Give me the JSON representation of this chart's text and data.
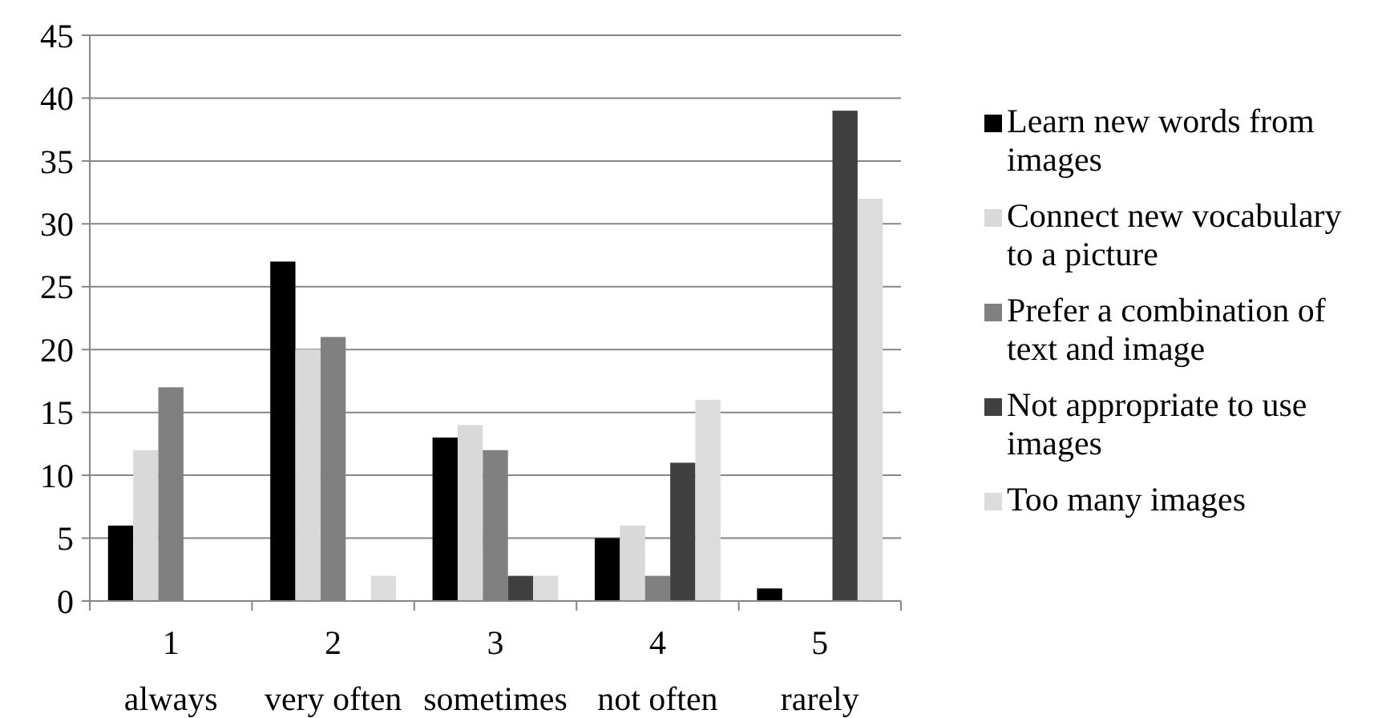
{
  "chart_data": {
    "type": "bar",
    "categories": [
      "1\nalways",
      "2\nvery often",
      "3\nsometimes",
      "4\nnot often",
      "5\nrarely"
    ],
    "series": [
      {
        "name": "Learn new words from images",
        "color": "#000000",
        "values": [
          6,
          27,
          13,
          5,
          1
        ]
      },
      {
        "name": "Connect new vocabulary to a picture",
        "color": "#d9d9d9",
        "values": [
          12,
          20,
          14,
          6,
          0
        ]
      },
      {
        "name": "Prefer a combination of text and image",
        "color": "#808080",
        "values": [
          17,
          21,
          12,
          2,
          0
        ]
      },
      {
        "name": "Not appropriate to use images",
        "color": "#404040",
        "values": [
          0,
          0,
          2,
          11,
          39
        ]
      },
      {
        "name": "Too many images",
        "color": "#dcdcdc",
        "values": [
          0,
          2,
          2,
          16,
          32
        ]
      }
    ],
    "ylim": [
      0,
      45
    ],
    "yticks": [
      0,
      5,
      10,
      15,
      20,
      25,
      30,
      35,
      40,
      45
    ],
    "grid": "y",
    "legend": "right"
  }
}
